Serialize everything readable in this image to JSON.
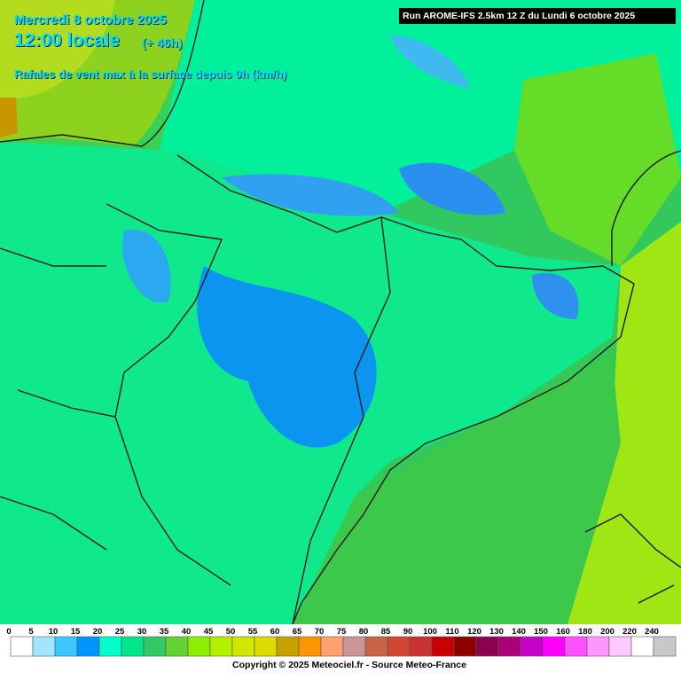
{
  "header": {
    "date": "Mercredi 8 octobre 2025",
    "time": "12:00 locale",
    "lead": "(+ 46h)",
    "subtitle": "Rafales de vent max à la surface depuis 0h (km/h)",
    "run": "Run AROME-IFS 2.5km 12 Z du Lundi 6 octobre 2025"
  },
  "legend": {
    "ticks": [
      0,
      5,
      10,
      15,
      20,
      25,
      30,
      35,
      40,
      45,
      50,
      55,
      60,
      65,
      70,
      75,
      80,
      85,
      90,
      100,
      110,
      120,
      130,
      140,
      150,
      160,
      180,
      200,
      220,
      240
    ],
    "colors": [
      "#ffffff",
      "#a0e6ff",
      "#3cc8ff",
      "#0096ff",
      "#00ffc8",
      "#00e68c",
      "#32c864",
      "#64d232",
      "#8cf000",
      "#b4f000",
      "#d2e600",
      "#dcdc00",
      "#c8a000",
      "#ff9600",
      "#ffa06e",
      "#c89696",
      "#c86446",
      "#d24632",
      "#c83232",
      "#c80000",
      "#8c0000",
      "#8c0050",
      "#aa0078",
      "#c800c8",
      "#ff00ff",
      "#ff50ff",
      "#ff96ff",
      "#ffc8ff",
      "#ffffff",
      "#c8c8c8"
    ]
  },
  "footer": {
    "copyright": "Copyright © 2025 Meteociel.fr - Source Meteo-France"
  }
}
